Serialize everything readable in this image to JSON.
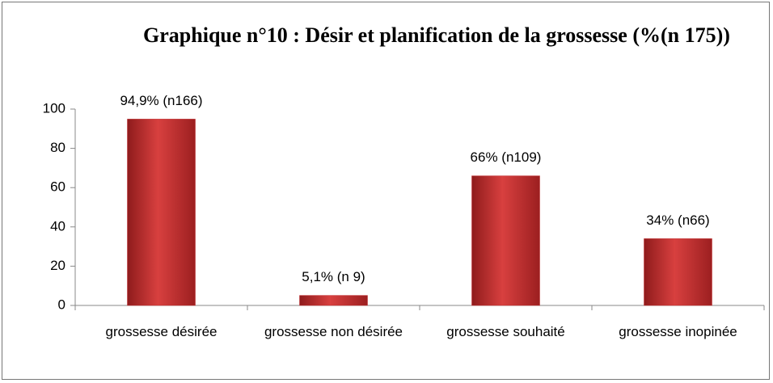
{
  "chart_data": {
    "type": "bar",
    "title": "Graphique n°10 : Désir et planification de la grossesse (%(n 175))",
    "categories": [
      "grossesse désirée",
      "grossesse non désirée",
      "grossesse souhaité",
      "grossesse inopinée"
    ],
    "values": [
      94.9,
      5.1,
      66,
      34
    ],
    "value_labels": [
      "94,9% (n166)",
      "5,1% (n 9)",
      "66% (n109)",
      "34% (n66)"
    ],
    "color": "#c0282a",
    "ylim": [
      0,
      100
    ],
    "yticks": [
      0,
      20,
      40,
      60,
      80,
      100
    ],
    "grid": false
  }
}
